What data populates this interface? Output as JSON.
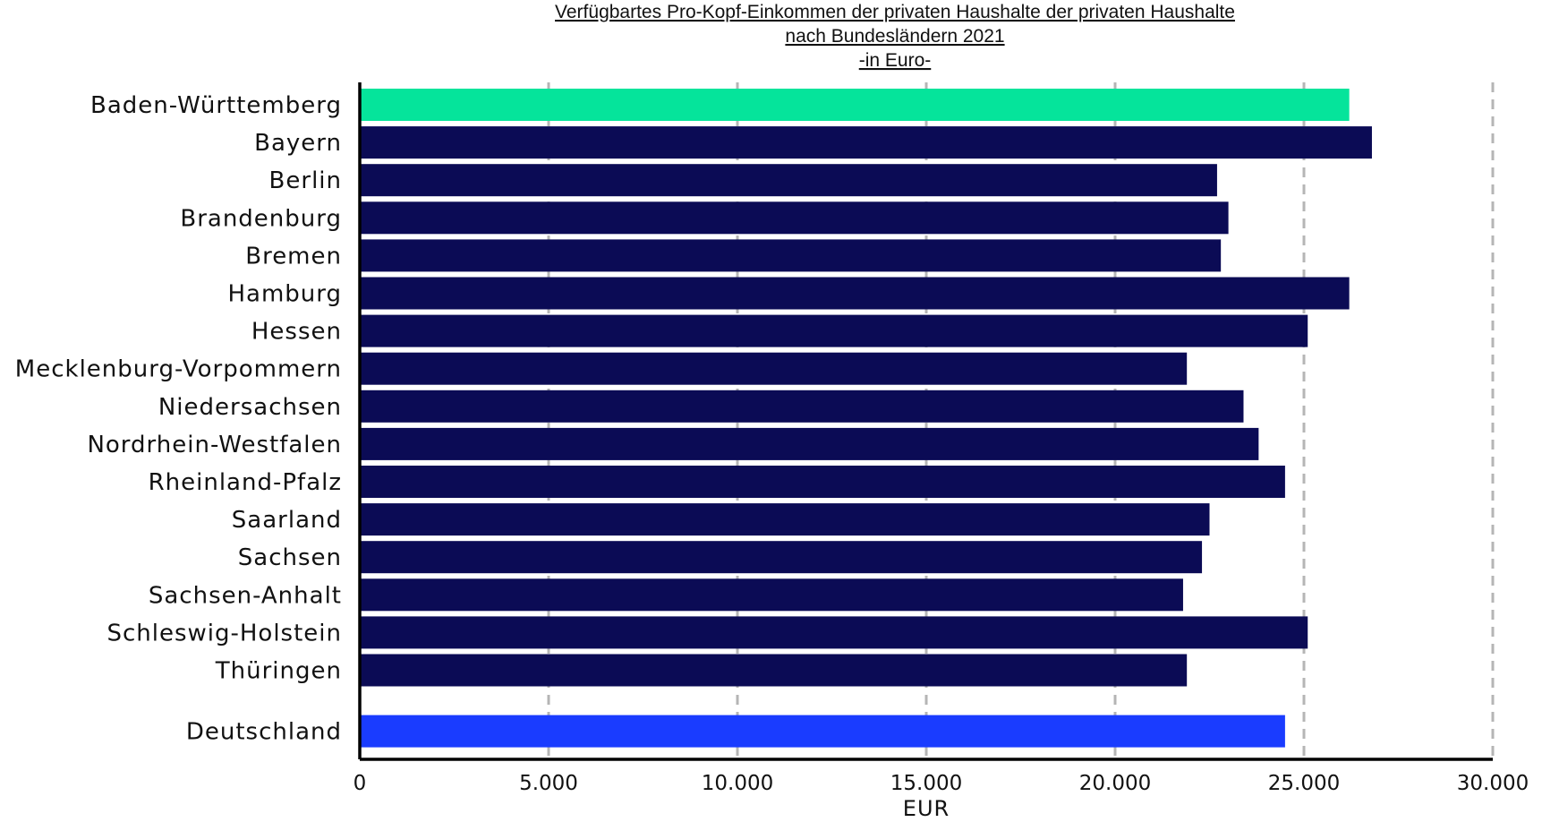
{
  "chart_data": {
    "type": "bar",
    "orientation": "horizontal",
    "title_lines": [
      "Verfügbartes Pro-Kopf-Einkommen der privaten Haushalte der privaten Haushalte",
      "nach Bundesländern 2021",
      "-in Euro-"
    ],
    "categories": [
      "Baden-Württemberg",
      "Bayern",
      "Berlin",
      "Brandenburg",
      "Bremen",
      "Hamburg",
      "Hessen",
      "Mecklenburg-Vorpommern",
      "Niedersachsen",
      "Nordrhein-Westfalen",
      "Rheinland-Pfalz",
      "Saarland",
      "Sachsen",
      "Sachsen-Anhalt",
      "Schleswig-Holstein",
      "Thüringen",
      "Deutschland"
    ],
    "values": [
      26200,
      26800,
      22700,
      23000,
      22800,
      26200,
      25100,
      21900,
      23400,
      23800,
      24500,
      22500,
      22300,
      21800,
      25100,
      21900,
      24500
    ],
    "bar_colors": [
      "#05e49b",
      "#0b0b55",
      "#0b0b55",
      "#0b0b55",
      "#0b0b55",
      "#0b0b55",
      "#0b0b55",
      "#0b0b55",
      "#0b0b55",
      "#0b0b55",
      "#0b0b55",
      "#0b0b55",
      "#0b0b55",
      "#0b0b55",
      "#0b0b55",
      "#0b0b55",
      "#1a3cff"
    ],
    "xlabel": "EUR",
    "xlim": [
      0,
      30000
    ],
    "x_ticks": [
      0,
      5000,
      10000,
      15000,
      20000,
      25000,
      30000
    ],
    "x_tick_labels": [
      "0",
      "5.000",
      "10.000",
      "15.000",
      "20.000",
      "25.000",
      "30.000"
    ],
    "grid": "vertical dashed",
    "legend": "none"
  }
}
